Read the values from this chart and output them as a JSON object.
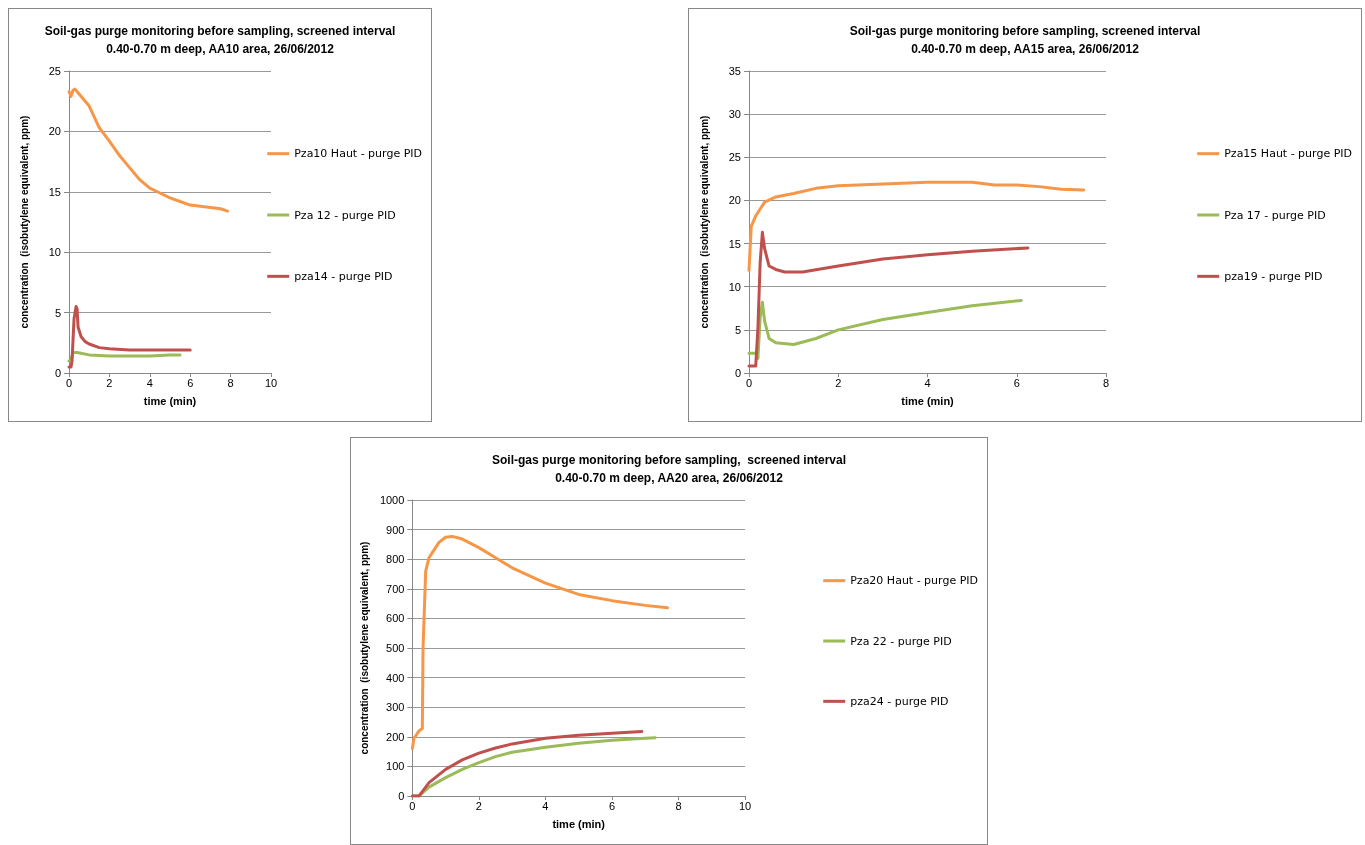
{
  "chart_data": [
    {
      "type": "line",
      "title": "Soil-gas purge monitoring before sampling, screened interval\n0.40-0.70 m deep, AA10 area, 26/06/2012",
      "xlabel": "time (min)",
      "ylabel": "concentration  (isobutylene equivalent, ppm)",
      "xlim": [
        0,
        10
      ],
      "xticks": [
        0,
        2,
        4,
        6,
        8,
        10
      ],
      "ylim": [
        0,
        25
      ],
      "yticks": [
        0,
        5,
        10,
        15,
        20,
        25
      ],
      "grid": "y",
      "legend": "right",
      "marker": "none",
      "line_style": "solid",
      "series": [
        {
          "name": "Pza10 Haut - purge PID",
          "color": "#f79646",
          "x": [
            0,
            0.1,
            0.2,
            0.3,
            0.5,
            1,
            1.5,
            2,
            2.5,
            3,
            3.5,
            4,
            4.5,
            5,
            5.5,
            6,
            6.5,
            7,
            7.5,
            7.85
          ],
          "values": [
            23.3,
            22.9,
            23.4,
            23.5,
            23.1,
            22.1,
            20.3,
            19.2,
            18,
            17,
            16,
            15.3,
            14.9,
            14.5,
            14.2,
            13.9,
            13.8,
            13.7,
            13.6,
            13.4
          ]
        },
        {
          "name": "Pza 12 - purge PID",
          "color": "#9bbb59",
          "x": [
            0,
            0.1,
            0.2,
            0.4,
            1,
            2,
            3,
            4,
            5,
            5.5
          ],
          "values": [
            1,
            1.1,
            1.7,
            1.7,
            1.5,
            1.4,
            1.4,
            1.4,
            1.5,
            1.5
          ]
        },
        {
          "name": "pza14 - purge PID",
          "color": "#c0504d",
          "x": [
            0,
            0.1,
            0.15,
            0.25,
            0.35,
            0.4,
            0.45,
            0.6,
            0.8,
            1,
            1.5,
            2,
            3,
            4,
            5,
            6
          ],
          "values": [
            0.5,
            0.5,
            1,
            4.5,
            5.5,
            5.3,
            3.8,
            3,
            2.6,
            2.4,
            2.1,
            2,
            1.9,
            1.9,
            1.9,
            1.9
          ]
        }
      ]
    },
    {
      "type": "line",
      "title": "Soil-gas purge monitoring before sampling, screened interval\n0.40-0.70 m deep, AA15 area, 26/06/2012",
      "xlabel": "time (min)",
      "ylabel": "concentration  (isobutylene equivalent, ppm)",
      "xlim": [
        0,
        8
      ],
      "xticks": [
        0,
        2,
        4,
        6,
        8
      ],
      "ylim": [
        0,
        35
      ],
      "yticks": [
        0,
        5,
        10,
        15,
        20,
        25,
        30,
        35
      ],
      "grid": "y",
      "legend": "right",
      "marker": "none",
      "line_style": "solid",
      "series": [
        {
          "name": "Pza15 Haut - purge PID",
          "color": "#f79646",
          "x": [
            0,
            0.05,
            0.15,
            0.25,
            0.35,
            0.6,
            1,
            1.5,
            2,
            3,
            4,
            5,
            5.5,
            6,
            6.5,
            7,
            7.5
          ],
          "values": [
            11.9,
            17,
            18.2,
            19,
            19.8,
            20.4,
            20.8,
            21.4,
            21.7,
            21.9,
            22.1,
            22.1,
            21.8,
            21.8,
            21.6,
            21.3,
            21.2
          ]
        },
        {
          "name": "Pza 17 - purge PID",
          "color": "#9bbb59",
          "x": [
            0,
            0.15,
            0.2,
            0.25,
            0.3,
            0.35,
            0.45,
            0.6,
            1,
            1.5,
            2,
            3,
            4,
            5,
            6.1
          ],
          "values": [
            2.3,
            2.3,
            1.7,
            6.4,
            8.2,
            6,
            4,
            3.5,
            3.3,
            4,
            5,
            6.2,
            7,
            7.8,
            8.4
          ]
        },
        {
          "name": "pza19 - purge PID",
          "color": "#c0504d",
          "x": [
            0,
            0.15,
            0.2,
            0.25,
            0.3,
            0.35,
            0.45,
            0.6,
            0.8,
            1.2,
            2,
            3,
            4,
            5,
            6.25
          ],
          "values": [
            0.8,
            0.8,
            5.2,
            12.8,
            16.3,
            14.4,
            12.4,
            12,
            11.7,
            11.7,
            12.4,
            13.2,
            13.7,
            14.1,
            14.5
          ]
        }
      ]
    },
    {
      "type": "line",
      "title": "Soil-gas purge monitoring before sampling,  screened interval\n0.40-0.70 m deep, AA20 area, 26/06/2012",
      "xlabel": "time (min)",
      "ylabel": "concentration  (isobutylene equivalent, ppm)",
      "xlim": [
        0,
        10
      ],
      "xticks": [
        0,
        2,
        4,
        6,
        8,
        10
      ],
      "ylim": [
        0,
        1000
      ],
      "yticks": [
        0,
        100,
        200,
        300,
        400,
        500,
        600,
        700,
        800,
        900,
        1000
      ],
      "grid": "y",
      "legend": "right",
      "marker": "none",
      "line_style": "solid",
      "series": [
        {
          "name": "Pza20 Haut - purge PID",
          "color": "#f79646",
          "x": [
            0,
            0.05,
            0.1,
            0.2,
            0.3,
            0.32,
            0.4,
            0.5,
            0.6,
            0.8,
            1,
            1.2,
            1.5,
            2,
            2.5,
            3,
            4,
            5,
            6,
            7,
            7.67
          ],
          "values": [
            160,
            197,
            203,
            220,
            228,
            495,
            759,
            805,
            822,
            857,
            874,
            877,
            868,
            839,
            805,
            771,
            719,
            681,
            660,
            644,
            636
          ]
        },
        {
          "name": "Pza 22 - purge PID",
          "color": "#9bbb59",
          "x": [
            0,
            0.2,
            0.5,
            1,
            1.5,
            2,
            2.5,
            3,
            4,
            5,
            6,
            7,
            7.3
          ],
          "values": [
            0,
            0,
            30,
            62,
            90,
            113,
            133,
            148,
            165,
            178,
            188,
            195,
            197
          ]
        },
        {
          "name": "pza24 - purge PID",
          "color": "#c0504d",
          "x": [
            0,
            0.2,
            0.3,
            0.5,
            1,
            1.5,
            2,
            2.5,
            3,
            4,
            5,
            6,
            6.9
          ],
          "values": [
            0,
            0,
            15,
            45,
            90,
            122,
            145,
            162,
            176,
            195,
            205,
            212,
            218
          ]
        }
      ]
    }
  ]
}
